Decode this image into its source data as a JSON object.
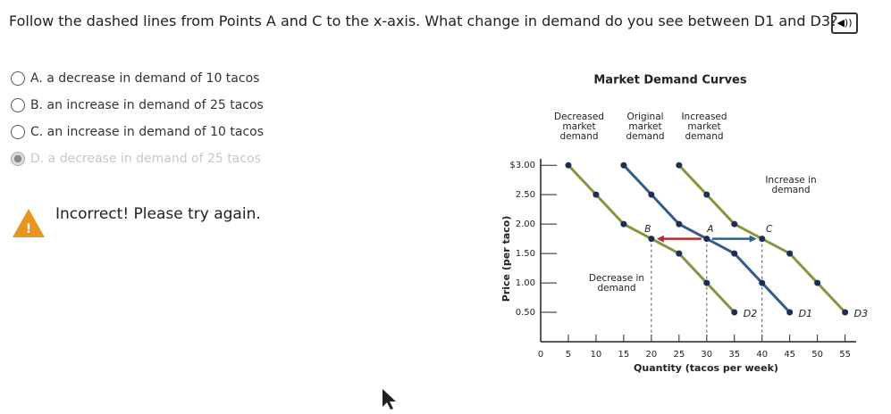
{
  "question": "Follow the dashed lines from Points A and C to the x-axis. What change in demand do you see between D1 and D3?",
  "options": [
    "A. a decrease in demand of 10 tacos",
    "B. an increase in demand of 25 tacos",
    "C. an increase in demand of 10 tacos",
    "D. a decrease in demand of 25 tacos"
  ],
  "feedback": "Incorrect! Please try again.",
  "chart_data": {
    "type": "line",
    "title": "Market Demand Curves",
    "x_label": "Quantity (tacos per week)",
    "y_label": "Price (per taco)",
    "xlim": [
      0,
      57
    ],
    "ylim": [
      0,
      3.2
    ],
    "xticks": [
      0,
      5,
      10,
      15,
      20,
      25,
      30,
      35,
      40,
      45,
      50,
      55
    ],
    "yticks": [
      {
        "value": 0.5,
        "label": "0.50"
      },
      {
        "value": 1,
        "label": "1.00"
      },
      {
        "value": 1.5,
        "label": "1.50"
      },
      {
        "value": 2,
        "label": "2.00"
      },
      {
        "value": 2.5,
        "label": "2.50"
      },
      {
        "value": 3,
        "label": "$3.00"
      }
    ],
    "series": [
      {
        "name": "D2",
        "color": "#8a9340",
        "x": [
          5,
          10,
          15,
          20,
          25,
          30,
          35
        ],
        "values": [
          3.0,
          2.5,
          2.0,
          1.75,
          1.5,
          1.0,
          0.5
        ]
      },
      {
        "name": "D1",
        "color": "#2f5e8e",
        "x": [
          15,
          20,
          25,
          30,
          35,
          40,
          45
        ],
        "values": [
          3.0,
          2.5,
          2.0,
          1.75,
          1.5,
          1.0,
          0.5
        ]
      },
      {
        "name": "D3",
        "color": "#8a9340",
        "x": [
          25,
          30,
          35,
          40,
          45,
          50,
          55
        ],
        "values": [
          3.0,
          2.5,
          2.0,
          1.75,
          1.5,
          1.0,
          0.5
        ]
      }
    ],
    "annotations": [
      "Decreased market demand",
      "Original market demand",
      "Increased market demand",
      "Increase in demand",
      "Decrease in demand",
      "B",
      "A",
      "C"
    ]
  }
}
